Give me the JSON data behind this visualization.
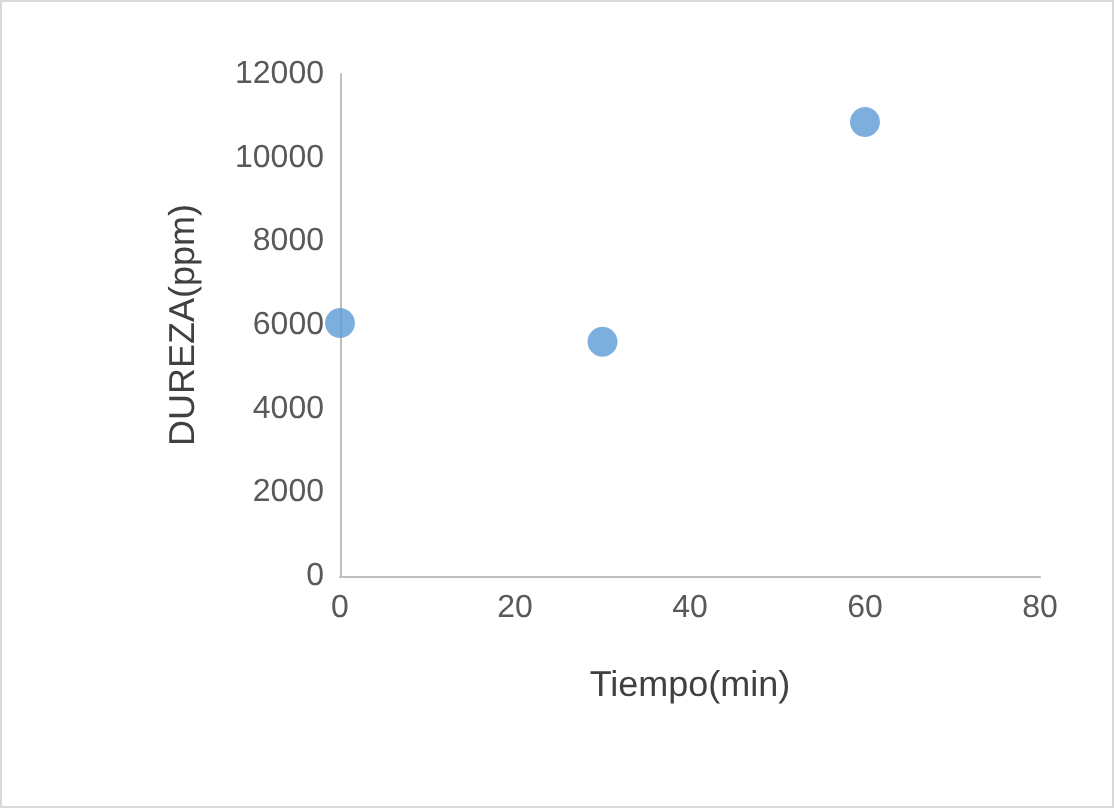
{
  "chart_data": {
    "type": "scatter",
    "xlabel": "Tiempo(min)",
    "ylabel": "DUREZA(ppm)",
    "x": [
      0,
      30,
      60
    ],
    "series": [
      {
        "color": "#5b9bd5",
        "values": [
          6050,
          5600,
          10850
        ]
      }
    ],
    "xlim": [
      0,
      80
    ],
    "xticks": [
      0,
      20,
      40,
      60,
      80
    ],
    "ylim": [
      0,
      12000
    ],
    "yticks": [
      0,
      2000,
      4000,
      6000,
      8000,
      10000,
      12000
    ],
    "grid": false,
    "marker": "circle"
  }
}
